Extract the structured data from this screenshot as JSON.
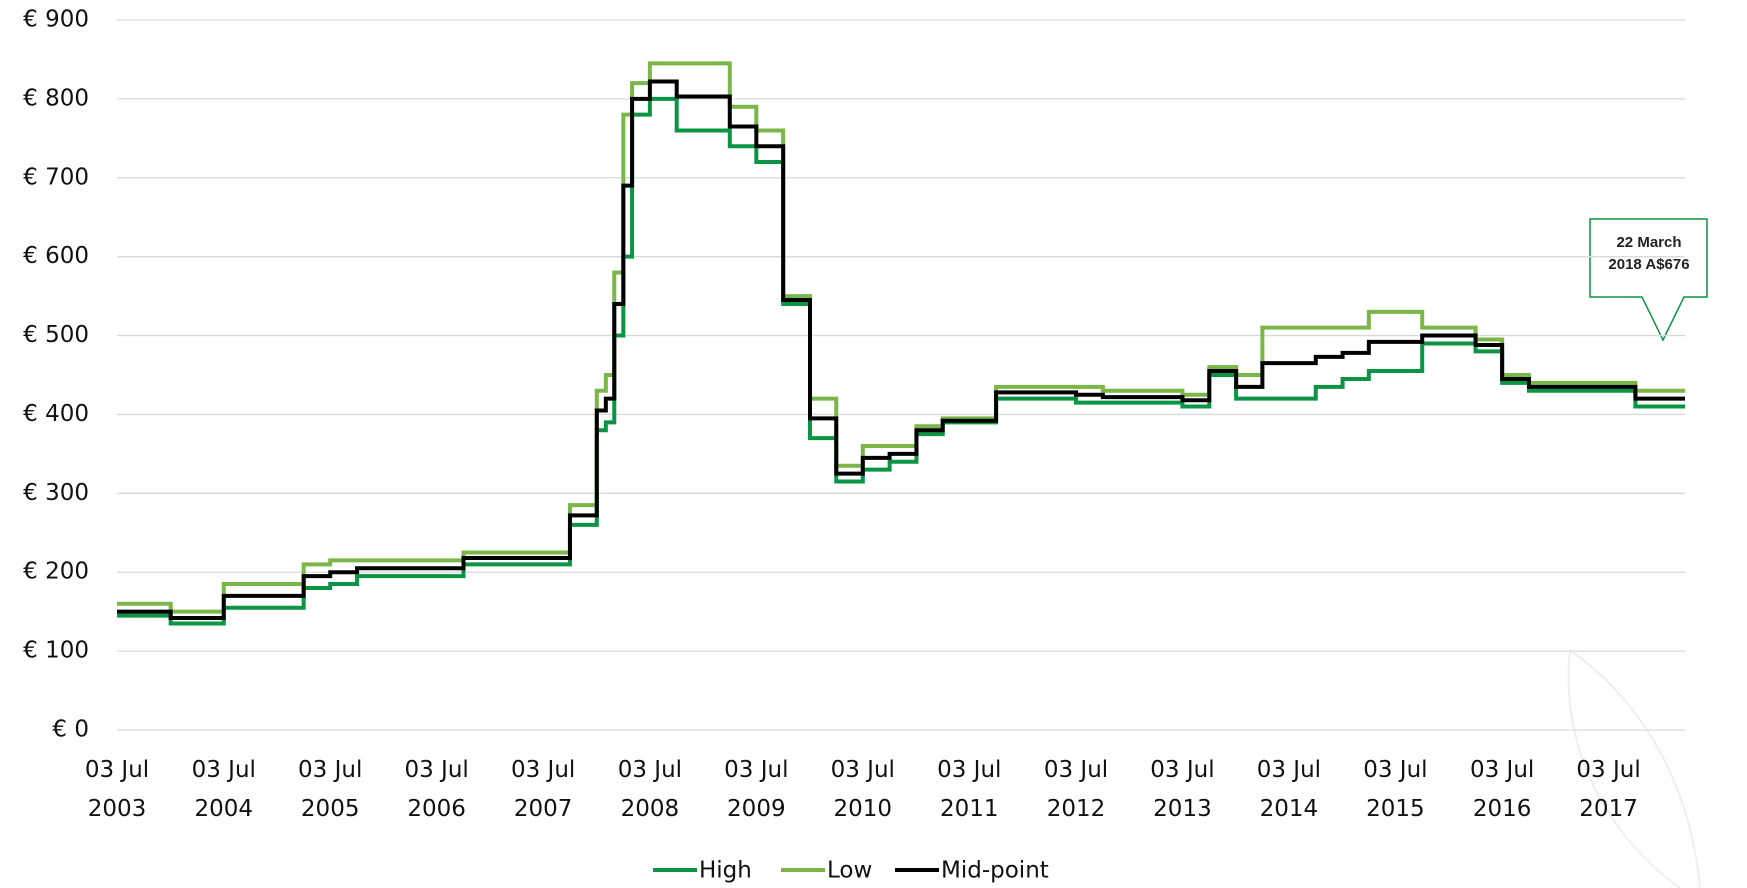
{
  "chart_data": {
    "type": "line",
    "step": true,
    "annotation": "22 March 2018 A$676",
    "x": [
      "2003-07-03",
      "2003-10-03",
      "2004-01-03",
      "2004-04-03",
      "2004-07-03",
      "2004-10-03",
      "2005-01-03",
      "2005-04-03",
      "2005-07-03",
      "2005-10-03",
      "2006-01-03",
      "2006-04-03",
      "2006-07-03",
      "2006-10-03",
      "2007-01-03",
      "2007-04-03",
      "2007-07-03",
      "2007-10-03",
      "2008-01-03",
      "2008-02-03",
      "2008-03-03",
      "2008-04-03",
      "2008-05-03",
      "2008-07-03",
      "2008-10-03",
      "2009-01-03",
      "2009-04-03",
      "2009-07-03",
      "2009-10-03",
      "2010-01-03",
      "2010-04-03",
      "2010-07-03",
      "2010-10-03",
      "2011-01-03",
      "2011-04-03",
      "2011-07-03",
      "2011-10-03",
      "2012-01-03",
      "2012-04-03",
      "2012-07-03",
      "2012-10-03",
      "2013-01-03",
      "2013-04-03",
      "2013-07-03",
      "2013-10-03",
      "2014-01-03",
      "2014-04-03",
      "2014-07-03",
      "2014-10-03",
      "2015-01-03",
      "2015-04-03",
      "2015-07-03",
      "2015-10-03",
      "2016-01-03",
      "2016-04-03",
      "2016-07-03",
      "2016-10-03",
      "2017-01-03",
      "2017-04-03",
      "2017-07-03",
      "2017-10-03",
      "2018-01-03",
      "2018-03-22"
    ],
    "series": [
      {
        "name": "High",
        "color": "#0b9444",
        "values": [
          145,
          145,
          135,
          135,
          155,
          155,
          155,
          180,
          185,
          195,
          195,
          195,
          195,
          210,
          210,
          210,
          210,
          260,
          380,
          390,
          500,
          600,
          780,
          800,
          760,
          760,
          740,
          720,
          540,
          370,
          315,
          330,
          340,
          375,
          390,
          390,
          420,
          420,
          420,
          415,
          415,
          415,
          415,
          410,
          450,
          420,
          420,
          420,
          435,
          445,
          455,
          455,
          490,
          490,
          480,
          440,
          430,
          430,
          430,
          430,
          410,
          410,
          410
        ]
      },
      {
        "name": "Low",
        "color": "#7ab648",
        "values": [
          160,
          160,
          150,
          150,
          185,
          185,
          185,
          210,
          215,
          215,
          215,
          215,
          215,
          225,
          225,
          225,
          225,
          285,
          430,
          450,
          580,
          780,
          820,
          845,
          845,
          845,
          790,
          760,
          550,
          420,
          335,
          360,
          360,
          385,
          395,
          395,
          435,
          435,
          435,
          435,
          430,
          430,
          430,
          425,
          460,
          450,
          510,
          510,
          510,
          510,
          530,
          530,
          510,
          510,
          495,
          450,
          440,
          440,
          440,
          440,
          430,
          430,
          430
        ]
      },
      {
        "name": "Mid-point",
        "color": "#000000",
        "values": [
          150,
          150,
          142,
          142,
          170,
          170,
          170,
          195,
          200,
          205,
          205,
          205,
          205,
          218,
          218,
          218,
          218,
          272,
          405,
          420,
          540,
          690,
          800,
          822,
          803,
          803,
          765,
          740,
          545,
          395,
          325,
          345,
          350,
          380,
          392,
          392,
          428,
          428,
          428,
          425,
          422,
          422,
          422,
          418,
          455,
          435,
          465,
          465,
          473,
          478,
          492,
          492,
          500,
          500,
          488,
          445,
          435,
          435,
          435,
          435,
          420,
          420,
          420
        ]
      }
    ],
    "xlim": [
      "2003-07-03",
      "2018-03-22"
    ],
    "xticks": [
      {
        "value": "2003-07-03",
        "label": "03 Jul 2003"
      },
      {
        "value": "2004-07-03",
        "label": "03 Jul 2004"
      },
      {
        "value": "2005-07-03",
        "label": "03 Jul 2005"
      },
      {
        "value": "2006-07-03",
        "label": "03 Jul 2006"
      },
      {
        "value": "2007-07-03",
        "label": "03 Jul 2007"
      },
      {
        "value": "2008-07-03",
        "label": "03 Jul 2008"
      },
      {
        "value": "2009-07-03",
        "label": "03 Jul 2009"
      },
      {
        "value": "2010-07-03",
        "label": "03 Jul 2010"
      },
      {
        "value": "2011-07-03",
        "label": "03 Jul 2011"
      },
      {
        "value": "2012-07-03",
        "label": "03 Jul 2012"
      },
      {
        "value": "2013-07-03",
        "label": "03 Jul 2013"
      },
      {
        "value": "2014-07-03",
        "label": "03 Jul 2014"
      },
      {
        "value": "2015-07-03",
        "label": "03 Jul 2015"
      },
      {
        "value": "2016-07-03",
        "label": "03 Jul 2016"
      },
      {
        "value": "2017-07-03",
        "label": "03 Jul 2017"
      }
    ],
    "ylim": [
      0,
      900
    ],
    "yticks": [
      {
        "value": 0,
        "label": "€ 0"
      },
      {
        "value": 100,
        "label": "€ 100"
      },
      {
        "value": 200,
        "label": "€ 200"
      },
      {
        "value": 300,
        "label": "€ 300"
      },
      {
        "value": 400,
        "label": "€ 400"
      },
      {
        "value": 500,
        "label": "€ 500"
      },
      {
        "value": 600,
        "label": "€ 600"
      },
      {
        "value": 700,
        "label": "€ 700"
      },
      {
        "value": 800,
        "label": "€ 800"
      },
      {
        "value": 900,
        "label": "€ 900"
      }
    ],
    "grid": true,
    "legend": "bottom"
  }
}
